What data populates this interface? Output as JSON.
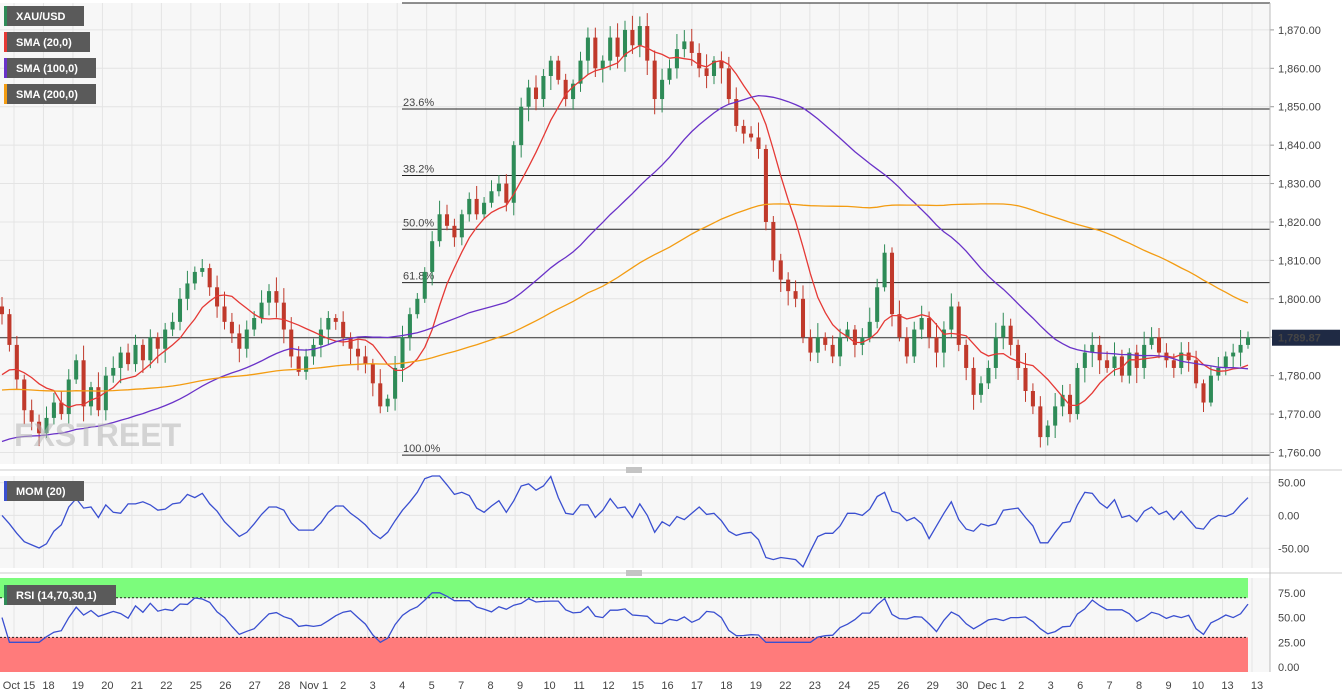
{
  "chart_data": {
    "type": "candlestick",
    "instrument": "XAU/USD",
    "watermark": "FXSTREET",
    "last_price_label": "1,789.87",
    "x_tick_labels": [
      "Oct 15",
      "18",
      "19",
      "20",
      "21",
      "22",
      "25",
      "26",
      "27",
      "28",
      "Nov 1",
      "2",
      "3",
      "4",
      "5",
      "7",
      "8",
      "9",
      "10",
      "11",
      "12",
      "15",
      "16",
      "17",
      "18",
      "19",
      "22",
      "23",
      "24",
      "25",
      "26",
      "29",
      "30",
      "Dec 1",
      "2",
      "3",
      "6",
      "7",
      "8",
      "9",
      "10",
      "13",
      "13"
    ],
    "main_panel": {
      "y_ticks": [
        "1,760.00",
        "1,770.00",
        "1,780.00",
        "1,790.00",
        "1,800.00",
        "1,810.00",
        "1,820.00",
        "1,830.00",
        "1,840.00",
        "1,850.00",
        "1,860.00",
        "1,870.00"
      ],
      "y_tick_values": [
        1760,
        1770,
        1780,
        1790,
        1800,
        1810,
        1820,
        1830,
        1840,
        1850,
        1860,
        1870
      ],
      "ylim": [
        1757,
        1877
      ],
      "legend": [
        "XAU/USD",
        "SMA (20,0)",
        "SMA (100,0)",
        "SMA (200,0)"
      ],
      "series_colors": {
        "up": "#2e8b57",
        "down": "#c0392b",
        "sma20": "#e53935",
        "sma100": "#6a32c8",
        "sma200": "#f39c12"
      },
      "fibonacci": [
        {
          "label": "23.6%",
          "value": 1849.4
        },
        {
          "label": "38.2%",
          "value": 1832.1
        },
        {
          "label": "50.0%",
          "value": 1818.1
        },
        {
          "label": "61.8%",
          "value": 1804.2
        },
        {
          "label": "100.0%",
          "value": 1759.3
        }
      ],
      "fib_high": 1877,
      "last_price": 1789.87,
      "close": [
        1796,
        1788,
        1779,
        1771,
        1768,
        1765,
        1769,
        1773,
        1770,
        1779,
        1784,
        1772,
        1777,
        1771,
        1780,
        1782,
        1786,
        1783,
        1788,
        1784,
        1790,
        1787,
        1792,
        1794,
        1800,
        1804,
        1807,
        1808,
        1803,
        1798,
        1794,
        1791,
        1787,
        1792,
        1795,
        1799,
        1802,
        1799,
        1792,
        1785,
        1781,
        1785,
        1788,
        1792,
        1795,
        1794,
        1790,
        1787,
        1785,
        1783,
        1778,
        1772,
        1774,
        1782,
        1790,
        1796,
        1800,
        1807,
        1815,
        1822,
        1819,
        1816,
        1822,
        1826,
        1822,
        1825,
        1828,
        1830,
        1825,
        1840,
        1850,
        1855,
        1852,
        1858,
        1862,
        1857,
        1852,
        1856,
        1862,
        1868,
        1860,
        1862,
        1868,
        1863,
        1870,
        1866,
        1871,
        1862,
        1852,
        1857,
        1860,
        1865,
        1867,
        1864,
        1860,
        1858,
        1862,
        1860,
        1852,
        1845,
        1843,
        1842,
        1839,
        1820,
        1810,
        1805,
        1802,
        1800,
        1790,
        1786,
        1790,
        1788,
        1785,
        1790,
        1792,
        1788,
        1790,
        1794,
        1803,
        1812,
        1796,
        1790,
        1785,
        1792,
        1795,
        1790,
        1786,
        1792,
        1798,
        1788,
        1782,
        1775,
        1778,
        1782,
        1790,
        1793,
        1788,
        1782,
        1776,
        1772,
        1764,
        1767,
        1772,
        1775,
        1770,
        1782,
        1786,
        1788,
        1784,
        1782,
        1785,
        1780,
        1786,
        1782,
        1788,
        1790,
        1786,
        1784,
        1782,
        1786,
        1784,
        1778,
        1773,
        1780,
        1782,
        1785,
        1786,
        1788,
        1790
      ]
    },
    "mom_panel": {
      "legend": "MOM (20)",
      "y_ticks": [
        "-50.00",
        "0.00",
        "50.00"
      ],
      "y_tick_values": [
        -50,
        0,
        50
      ],
      "ylim": [
        -80,
        60
      ],
      "color": "#3a4fd0"
    },
    "rsi_panel": {
      "legend": "RSI (14,70,30,1)",
      "y_ticks": [
        "0.00",
        "25.00",
        "50.00",
        "75.00"
      ],
      "y_tick_values": [
        0,
        25,
        50,
        75
      ],
      "ylim": [
        -5,
        90
      ],
      "overbought": 70,
      "oversold": 30,
      "color": "#3a4fd0",
      "ob_color": "#7CFC7C",
      "os_color": "#ff7b7b"
    }
  }
}
